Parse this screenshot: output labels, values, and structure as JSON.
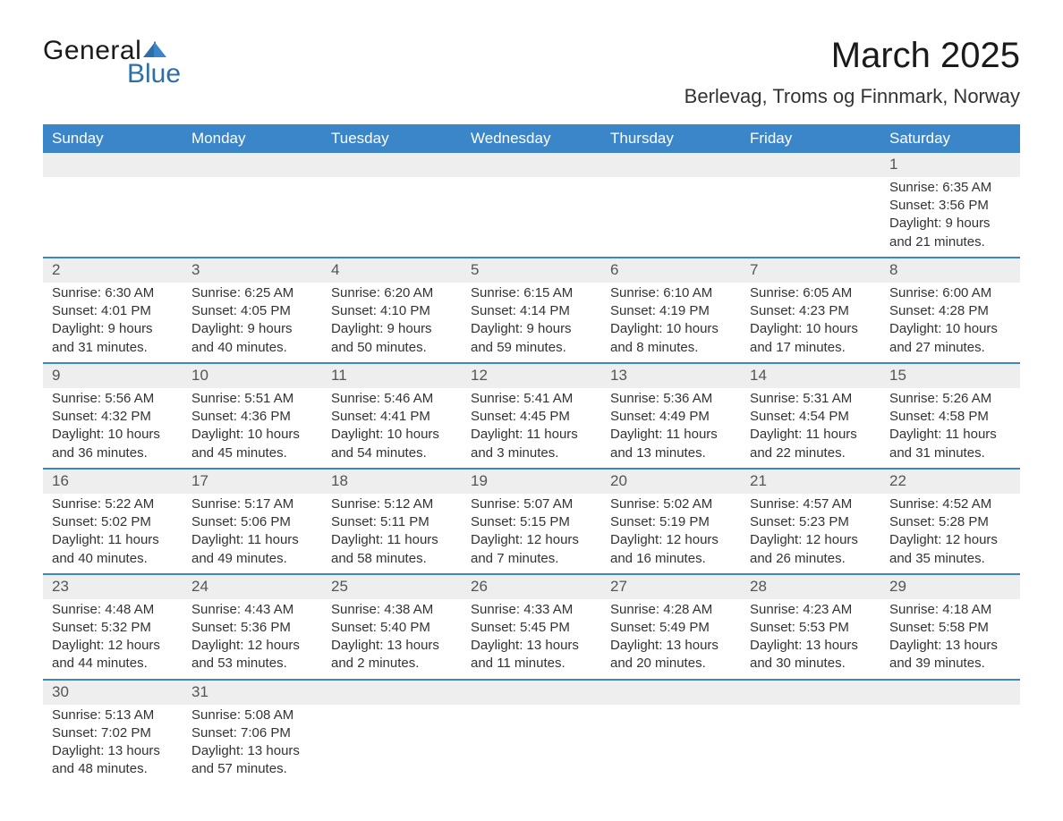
{
  "brand": {
    "line1": "General",
    "line2": "Blue"
  },
  "title": "March 2025",
  "location": "Berlevag, Troms og Finnmark, Norway",
  "colors": {
    "header_bg": "#3b86c8",
    "header_text": "#ffffff",
    "daynum_bg": "#eeeeee",
    "row_border": "#3b86c8",
    "body_text": "#333333",
    "brand_blue": "#2f6fa8",
    "background": "#ffffff"
  },
  "typography": {
    "title_fontsize": 40,
    "location_fontsize": 22,
    "header_fontsize": 17,
    "daynum_fontsize": 17,
    "detail_fontsize": 15,
    "logo_fontsize": 30
  },
  "weekday_headers": [
    "Sunday",
    "Monday",
    "Tuesday",
    "Wednesday",
    "Thursday",
    "Friday",
    "Saturday"
  ],
  "weeks": [
    [
      null,
      null,
      null,
      null,
      null,
      null,
      {
        "n": "1",
        "sr": "Sunrise: 6:35 AM",
        "ss": "Sunset: 3:56 PM",
        "d1": "Daylight: 9 hours",
        "d2": "and 21 minutes."
      }
    ],
    [
      {
        "n": "2",
        "sr": "Sunrise: 6:30 AM",
        "ss": "Sunset: 4:01 PM",
        "d1": "Daylight: 9 hours",
        "d2": "and 31 minutes."
      },
      {
        "n": "3",
        "sr": "Sunrise: 6:25 AM",
        "ss": "Sunset: 4:05 PM",
        "d1": "Daylight: 9 hours",
        "d2": "and 40 minutes."
      },
      {
        "n": "4",
        "sr": "Sunrise: 6:20 AM",
        "ss": "Sunset: 4:10 PM",
        "d1": "Daylight: 9 hours",
        "d2": "and 50 minutes."
      },
      {
        "n": "5",
        "sr": "Sunrise: 6:15 AM",
        "ss": "Sunset: 4:14 PM",
        "d1": "Daylight: 9 hours",
        "d2": "and 59 minutes."
      },
      {
        "n": "6",
        "sr": "Sunrise: 6:10 AM",
        "ss": "Sunset: 4:19 PM",
        "d1": "Daylight: 10 hours",
        "d2": "and 8 minutes."
      },
      {
        "n": "7",
        "sr": "Sunrise: 6:05 AM",
        "ss": "Sunset: 4:23 PM",
        "d1": "Daylight: 10 hours",
        "d2": "and 17 minutes."
      },
      {
        "n": "8",
        "sr": "Sunrise: 6:00 AM",
        "ss": "Sunset: 4:28 PM",
        "d1": "Daylight: 10 hours",
        "d2": "and 27 minutes."
      }
    ],
    [
      {
        "n": "9",
        "sr": "Sunrise: 5:56 AM",
        "ss": "Sunset: 4:32 PM",
        "d1": "Daylight: 10 hours",
        "d2": "and 36 minutes."
      },
      {
        "n": "10",
        "sr": "Sunrise: 5:51 AM",
        "ss": "Sunset: 4:36 PM",
        "d1": "Daylight: 10 hours",
        "d2": "and 45 minutes."
      },
      {
        "n": "11",
        "sr": "Sunrise: 5:46 AM",
        "ss": "Sunset: 4:41 PM",
        "d1": "Daylight: 10 hours",
        "d2": "and 54 minutes."
      },
      {
        "n": "12",
        "sr": "Sunrise: 5:41 AM",
        "ss": "Sunset: 4:45 PM",
        "d1": "Daylight: 11 hours",
        "d2": "and 3 minutes."
      },
      {
        "n": "13",
        "sr": "Sunrise: 5:36 AM",
        "ss": "Sunset: 4:49 PM",
        "d1": "Daylight: 11 hours",
        "d2": "and 13 minutes."
      },
      {
        "n": "14",
        "sr": "Sunrise: 5:31 AM",
        "ss": "Sunset: 4:54 PM",
        "d1": "Daylight: 11 hours",
        "d2": "and 22 minutes."
      },
      {
        "n": "15",
        "sr": "Sunrise: 5:26 AM",
        "ss": "Sunset: 4:58 PM",
        "d1": "Daylight: 11 hours",
        "d2": "and 31 minutes."
      }
    ],
    [
      {
        "n": "16",
        "sr": "Sunrise: 5:22 AM",
        "ss": "Sunset: 5:02 PM",
        "d1": "Daylight: 11 hours",
        "d2": "and 40 minutes."
      },
      {
        "n": "17",
        "sr": "Sunrise: 5:17 AM",
        "ss": "Sunset: 5:06 PM",
        "d1": "Daylight: 11 hours",
        "d2": "and 49 minutes."
      },
      {
        "n": "18",
        "sr": "Sunrise: 5:12 AM",
        "ss": "Sunset: 5:11 PM",
        "d1": "Daylight: 11 hours",
        "d2": "and 58 minutes."
      },
      {
        "n": "19",
        "sr": "Sunrise: 5:07 AM",
        "ss": "Sunset: 5:15 PM",
        "d1": "Daylight: 12 hours",
        "d2": "and 7 minutes."
      },
      {
        "n": "20",
        "sr": "Sunrise: 5:02 AM",
        "ss": "Sunset: 5:19 PM",
        "d1": "Daylight: 12 hours",
        "d2": "and 16 minutes."
      },
      {
        "n": "21",
        "sr": "Sunrise: 4:57 AM",
        "ss": "Sunset: 5:23 PM",
        "d1": "Daylight: 12 hours",
        "d2": "and 26 minutes."
      },
      {
        "n": "22",
        "sr": "Sunrise: 4:52 AM",
        "ss": "Sunset: 5:28 PM",
        "d1": "Daylight: 12 hours",
        "d2": "and 35 minutes."
      }
    ],
    [
      {
        "n": "23",
        "sr": "Sunrise: 4:48 AM",
        "ss": "Sunset: 5:32 PM",
        "d1": "Daylight: 12 hours",
        "d2": "and 44 minutes."
      },
      {
        "n": "24",
        "sr": "Sunrise: 4:43 AM",
        "ss": "Sunset: 5:36 PM",
        "d1": "Daylight: 12 hours",
        "d2": "and 53 minutes."
      },
      {
        "n": "25",
        "sr": "Sunrise: 4:38 AM",
        "ss": "Sunset: 5:40 PM",
        "d1": "Daylight: 13 hours",
        "d2": "and 2 minutes."
      },
      {
        "n": "26",
        "sr": "Sunrise: 4:33 AM",
        "ss": "Sunset: 5:45 PM",
        "d1": "Daylight: 13 hours",
        "d2": "and 11 minutes."
      },
      {
        "n": "27",
        "sr": "Sunrise: 4:28 AM",
        "ss": "Sunset: 5:49 PM",
        "d1": "Daylight: 13 hours",
        "d2": "and 20 minutes."
      },
      {
        "n": "28",
        "sr": "Sunrise: 4:23 AM",
        "ss": "Sunset: 5:53 PM",
        "d1": "Daylight: 13 hours",
        "d2": "and 30 minutes."
      },
      {
        "n": "29",
        "sr": "Sunrise: 4:18 AM",
        "ss": "Sunset: 5:58 PM",
        "d1": "Daylight: 13 hours",
        "d2": "and 39 minutes."
      }
    ],
    [
      {
        "n": "30",
        "sr": "Sunrise: 5:13 AM",
        "ss": "Sunset: 7:02 PM",
        "d1": "Daylight: 13 hours",
        "d2": "and 48 minutes."
      },
      {
        "n": "31",
        "sr": "Sunrise: 5:08 AM",
        "ss": "Sunset: 7:06 PM",
        "d1": "Daylight: 13 hours",
        "d2": "and 57 minutes."
      },
      null,
      null,
      null,
      null,
      null
    ]
  ]
}
